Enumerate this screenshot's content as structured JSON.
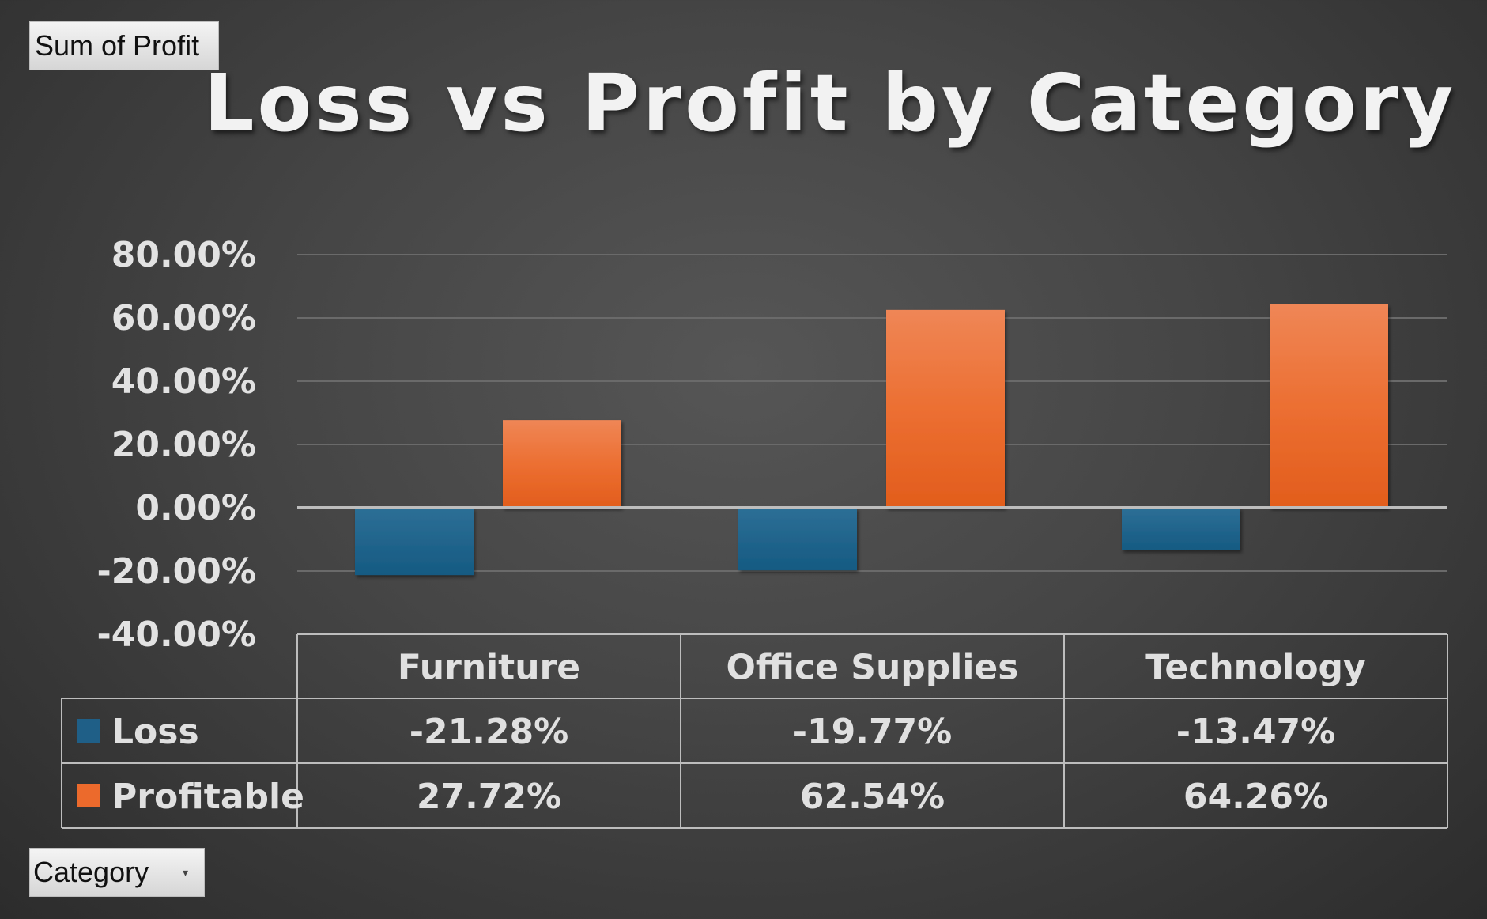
{
  "pivot": {
    "value_field": "Sum of Profit",
    "axis_field": "Category"
  },
  "colors": {
    "loss": "#1f5f87",
    "profitable": "#ec6a2c",
    "text": "#e2e2e2"
  },
  "chart_data": {
    "type": "bar",
    "title": "Loss vs Profit by Category",
    "categories": [
      "Furniture",
      "Office Supplies",
      "Technology"
    ],
    "series": [
      {
        "name": "Loss",
        "values": [
          -21.28,
          -19.77,
          -13.47
        ],
        "labels": [
          "-21.28%",
          "-19.77%",
          "-13.47%"
        ]
      },
      {
        "name": "Profitable",
        "values": [
          27.72,
          62.54,
          64.26
        ],
        "labels": [
          "27.72%",
          "62.54%",
          "64.26%"
        ]
      }
    ],
    "ylim": [
      -40,
      80
    ],
    "yticks": [
      80,
      60,
      40,
      20,
      0,
      -20,
      -40
    ],
    "ytick_labels": [
      "80.00%",
      "60.00%",
      "40.00%",
      "20.00%",
      "0.00%",
      "-20.00%",
      "-40.00%"
    ],
    "grid": true,
    "legend": "data-table"
  }
}
